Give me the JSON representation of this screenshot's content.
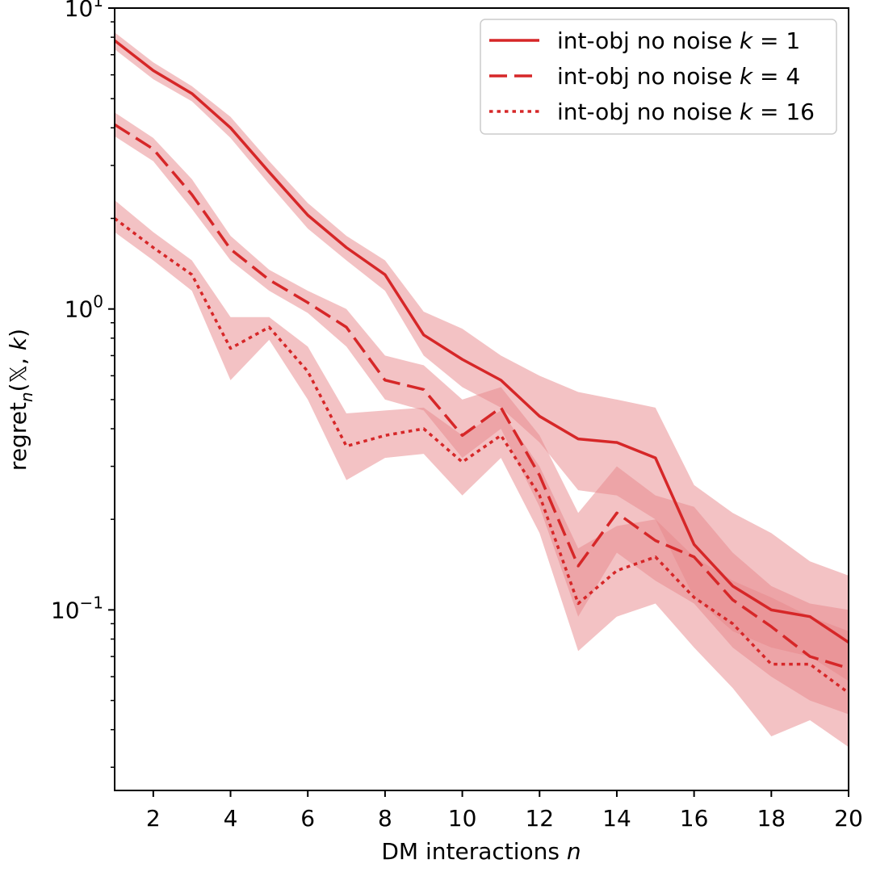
{
  "chart_data": {
    "type": "line",
    "xlabel": "DM interactions",
    "xlabel_var": "n",
    "ylabel_base": "regret",
    "ylabel_sub": "n",
    "ylabel_args": "(𝕏, ",
    "ylabel_k": "k",
    "ylabel_close": ")",
    "xlim": [
      1,
      20
    ],
    "ylim_log10": [
      -1.6,
      1.0
    ],
    "yscale": "log",
    "xticks": [
      2,
      4,
      6,
      8,
      10,
      12,
      14,
      16,
      18,
      20
    ],
    "yticks": [
      {
        "exp": 1,
        "base": "10",
        "sup": "1"
      },
      {
        "exp": 0,
        "base": "10",
        "sup": "0"
      },
      {
        "exp": -1,
        "base": "10",
        "sup": "−1"
      }
    ],
    "x": [
      1,
      2,
      3,
      4,
      5,
      6,
      7,
      8,
      9,
      10,
      11,
      12,
      13,
      14,
      15,
      16,
      17,
      18,
      19,
      20
    ],
    "color": "#d62728",
    "band_color": "#e8868a",
    "legend_position": "top-right",
    "series": [
      {
        "name": "int-obj no noise",
        "k": "1",
        "style": "solid",
        "values": [
          7.8,
          6.2,
          5.2,
          4.0,
          2.85,
          2.05,
          1.6,
          1.3,
          0.82,
          0.68,
          0.58,
          0.44,
          0.37,
          0.36,
          0.32,
          0.165,
          0.12,
          0.1,
          0.095,
          0.078
        ],
        "lower": [
          7.3,
          5.8,
          4.9,
          3.7,
          2.6,
          1.85,
          1.45,
          1.15,
          0.7,
          0.55,
          0.47,
          0.36,
          0.25,
          0.24,
          0.2,
          0.11,
          0.085,
          0.075,
          0.07,
          0.058
        ],
        "upper": [
          8.3,
          6.6,
          5.5,
          4.35,
          3.1,
          2.25,
          1.75,
          1.45,
          0.98,
          0.86,
          0.7,
          0.6,
          0.53,
          0.5,
          0.47,
          0.26,
          0.21,
          0.18,
          0.145,
          0.13
        ]
      },
      {
        "name": "int-obj no noise",
        "k": "4",
        "style": "dashed",
        "values": [
          4.1,
          3.4,
          2.4,
          1.58,
          1.25,
          1.05,
          0.87,
          0.58,
          0.54,
          0.38,
          0.47,
          0.28,
          0.14,
          0.21,
          0.17,
          0.15,
          0.108,
          0.088,
          0.07,
          0.064
        ],
        "lower": [
          3.75,
          3.1,
          2.15,
          1.45,
          1.15,
          0.97,
          0.75,
          0.5,
          0.46,
          0.32,
          0.4,
          0.22,
          0.095,
          0.155,
          0.125,
          0.105,
          0.075,
          0.06,
          0.05,
          0.045
        ],
        "upper": [
          4.5,
          3.7,
          2.7,
          1.75,
          1.35,
          1.15,
          1.0,
          0.7,
          0.65,
          0.5,
          0.55,
          0.38,
          0.21,
          0.3,
          0.24,
          0.22,
          0.155,
          0.12,
          0.105,
          0.1
        ]
      },
      {
        "name": "int-obj no noise",
        "k": "16",
        "style": "dotted",
        "values": [
          2.0,
          1.6,
          1.3,
          0.74,
          0.87,
          0.62,
          0.35,
          0.38,
          0.4,
          0.31,
          0.38,
          0.24,
          0.105,
          0.135,
          0.15,
          0.11,
          0.09,
          0.066,
          0.066,
          0.053
        ],
        "lower": [
          1.8,
          1.45,
          1.15,
          0.58,
          0.79,
          0.5,
          0.27,
          0.32,
          0.33,
          0.24,
          0.32,
          0.18,
          0.073,
          0.095,
          0.105,
          0.075,
          0.055,
          0.038,
          0.043,
          0.035
        ],
        "upper": [
          2.3,
          1.8,
          1.45,
          0.94,
          0.94,
          0.75,
          0.45,
          0.46,
          0.47,
          0.38,
          0.46,
          0.3,
          0.16,
          0.19,
          0.2,
          0.15,
          0.125,
          0.11,
          0.095,
          0.085
        ]
      }
    ]
  }
}
